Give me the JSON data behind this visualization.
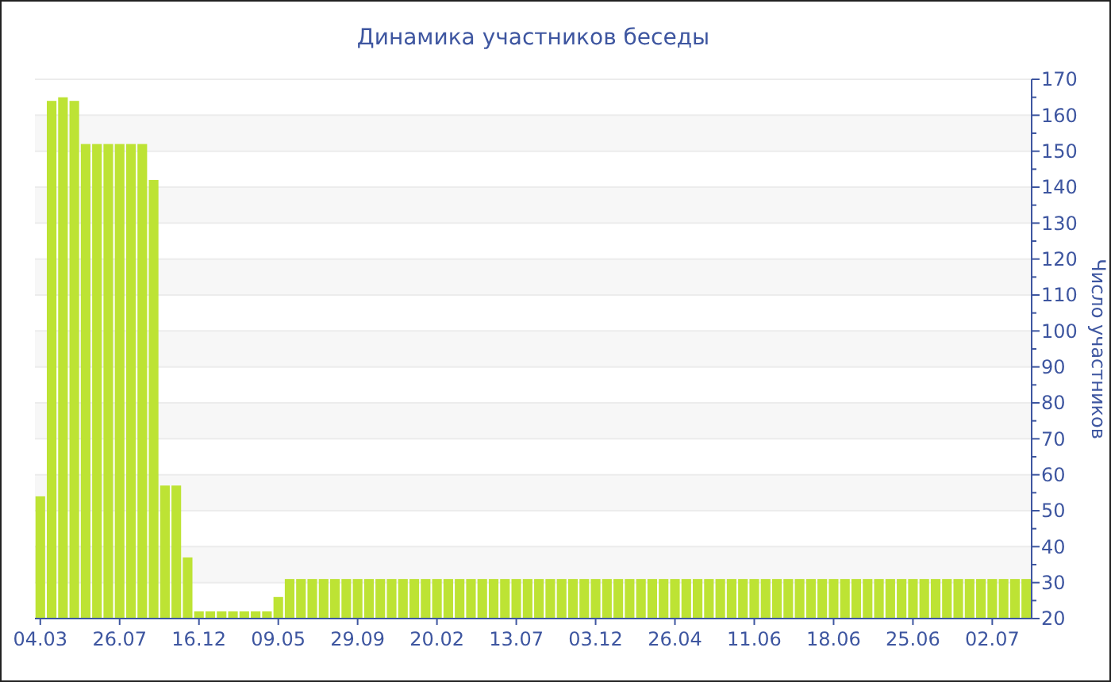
{
  "chart_data": {
    "type": "bar",
    "title": "Динамика участников беседы",
    "ylabel": "Число участников",
    "categories": [
      "04.03",
      null,
      null,
      null,
      null,
      null,
      null,
      "26.07",
      null,
      null,
      null,
      null,
      null,
      null,
      "16.12",
      null,
      null,
      null,
      null,
      null,
      null,
      "09.05",
      null,
      null,
      null,
      null,
      null,
      null,
      "29.09",
      null,
      null,
      null,
      null,
      null,
      null,
      "20.02",
      null,
      null,
      null,
      null,
      null,
      null,
      "13.07",
      null,
      null,
      null,
      null,
      null,
      null,
      "03.12",
      null,
      null,
      null,
      null,
      null,
      null,
      "26.04",
      null,
      null,
      null,
      null,
      null,
      null,
      "11.06",
      null,
      null,
      null,
      null,
      null,
      null,
      "18.06",
      null,
      null,
      null,
      null,
      null,
      null,
      "25.06",
      null,
      null,
      null,
      null,
      null,
      null,
      "02.07",
      null,
      null,
      null
    ],
    "values": [
      54,
      164,
      165,
      164,
      152,
      152,
      152,
      152,
      152,
      152,
      142,
      57,
      57,
      37,
      22,
      22,
      22,
      22,
      22,
      22,
      22,
      26,
      31,
      31,
      31,
      31,
      31,
      31,
      31,
      31,
      31,
      31,
      31,
      31,
      31,
      31,
      31,
      31,
      31,
      31,
      31,
      31,
      31,
      31,
      31,
      31,
      31,
      31,
      31,
      31,
      31,
      31,
      31,
      31,
      31,
      31,
      31,
      31,
      31,
      31,
      31,
      31,
      31,
      31,
      31,
      31,
      31,
      31,
      31,
      31,
      31,
      31,
      31,
      31,
      31,
      31,
      31,
      31,
      31,
      31,
      31,
      31,
      31,
      31,
      31,
      31,
      31,
      31
    ],
    "color": "#bde334",
    "ylim": [
      20,
      170
    ],
    "yticks": [
      20,
      30,
      40,
      50,
      60,
      70,
      80,
      90,
      100,
      110,
      120,
      130,
      140,
      150,
      160,
      170
    ],
    "grid": "y"
  }
}
